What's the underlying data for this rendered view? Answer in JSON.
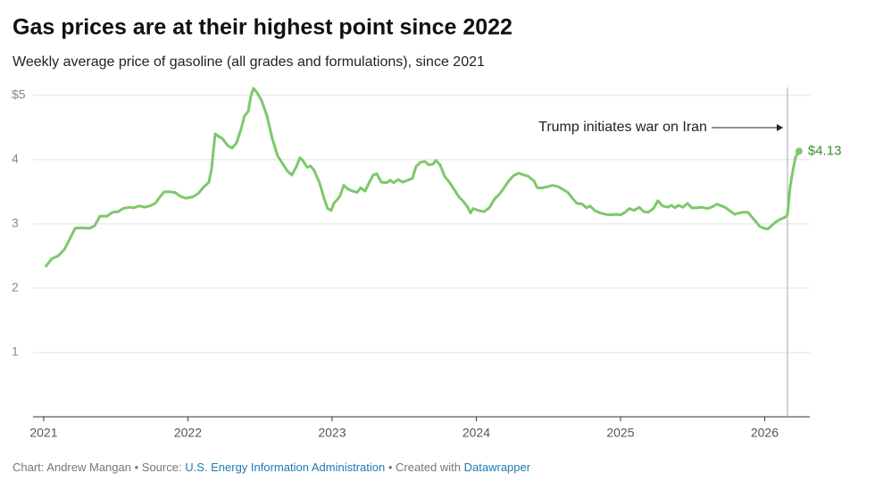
{
  "chart_data": {
    "type": "line",
    "title": "Gas prices are at their highest point since 2022",
    "subtitle": "Weekly average price of gasoline (all grades and formulations), since 2021",
    "xlim": [
      2020.926,
      2026.313
    ],
    "xticks": [
      2021,
      2022,
      2023,
      2024,
      2025,
      2026
    ],
    "ylim": [
      0,
      5.15
    ],
    "yticks": [
      1,
      2,
      3,
      4,
      {
        "value": 5,
        "label": "$5"
      }
    ],
    "grid": true,
    "annotation": {
      "text": "Trump initiates war on Iran",
      "x": 2026.158
    },
    "end_label": "$4.13",
    "series": [
      {
        "color": "#7dc86b",
        "x": [
          2021.012,
          2021.056,
          2021.099,
          2021.142,
          2021.18,
          2021.217,
          2021.254,
          2021.316,
          2021.353,
          2021.39,
          2021.44,
          2021.477,
          2021.514,
          2021.551,
          2021.594,
          2021.625,
          2021.663,
          2021.7,
          2021.737,
          2021.774,
          2021.799,
          2021.836,
          2021.873,
          2021.91,
          2021.947,
          2021.985,
          2022.034,
          2022.071,
          2022.108,
          2022.146,
          2022.164,
          2022.189,
          2022.214,
          2022.238,
          2022.276,
          2022.307,
          2022.337,
          2022.368,
          2022.393,
          2022.418,
          2022.437,
          2022.455,
          2022.48,
          2022.511,
          2022.548,
          2022.585,
          2022.622,
          2022.659,
          2022.69,
          2022.721,
          2022.752,
          2022.777,
          2022.796,
          2022.827,
          2022.851,
          2022.876,
          2022.913,
          2022.944,
          2022.969,
          2022.994,
          2023.012,
          2023.037,
          2023.056,
          2023.08,
          2023.111,
          2023.142,
          2023.173,
          2023.198,
          2023.229,
          2023.254,
          2023.285,
          2023.31,
          2023.341,
          2023.378,
          2023.402,
          2023.427,
          2023.458,
          2023.489,
          2023.526,
          2023.557,
          2023.582,
          2023.613,
          2023.644,
          2023.669,
          2023.7,
          2023.718,
          2023.749,
          2023.78,
          2023.817,
          2023.848,
          2023.879,
          2023.91,
          2023.941,
          2023.96,
          2023.978,
          2024.015,
          2024.053,
          2024.09,
          2024.127,
          2024.164,
          2024.195,
          2024.226,
          2024.257,
          2024.294,
          2024.331,
          2024.362,
          2024.399,
          2024.424,
          2024.461,
          2024.498,
          2024.529,
          2024.567,
          2024.598,
          2024.635,
          2024.666,
          2024.697,
          2024.734,
          2024.765,
          2024.789,
          2024.82,
          2024.858,
          2024.895,
          2024.932,
          2024.969,
          2025.0,
          2025.031,
          2025.062,
          2025.093,
          2025.13,
          2025.161,
          2025.192,
          2025.229,
          2025.26,
          2025.291,
          2025.328,
          2025.353,
          2025.378,
          2025.402,
          2025.433,
          2025.464,
          2025.495,
          2025.533,
          2025.563,
          2025.601,
          2025.632,
          2025.669,
          2025.7,
          2025.724,
          2025.755,
          2025.793,
          2025.824,
          2025.848,
          2025.885,
          2025.91,
          2025.941,
          2025.966,
          2025.997,
          2026.022,
          2026.046,
          2026.077,
          2026.108,
          2026.146,
          2026.158,
          2026.176,
          2026.195,
          2026.214,
          2026.238
        ],
        "values": [
          2.33,
          2.46,
          2.5,
          2.6,
          2.76,
          2.93,
          2.94,
          2.93,
          2.97,
          3.12,
          3.12,
          3.18,
          3.19,
          3.24,
          3.26,
          3.25,
          3.28,
          3.26,
          3.28,
          3.32,
          3.4,
          3.5,
          3.5,
          3.49,
          3.43,
          3.4,
          3.42,
          3.47,
          3.57,
          3.65,
          3.85,
          4.4,
          4.36,
          4.33,
          4.22,
          4.18,
          4.26,
          4.47,
          4.68,
          4.75,
          4.99,
          5.11,
          5.04,
          4.92,
          4.68,
          4.33,
          4.06,
          3.93,
          3.82,
          3.76,
          3.89,
          4.03,
          3.99,
          3.88,
          3.9,
          3.83,
          3.64,
          3.4,
          3.24,
          3.21,
          3.32,
          3.38,
          3.44,
          3.6,
          3.54,
          3.51,
          3.49,
          3.56,
          3.51,
          3.63,
          3.76,
          3.78,
          3.65,
          3.64,
          3.68,
          3.64,
          3.69,
          3.65,
          3.68,
          3.71,
          3.89,
          3.96,
          3.97,
          3.92,
          3.93,
          3.99,
          3.92,
          3.74,
          3.64,
          3.53,
          3.42,
          3.35,
          3.26,
          3.17,
          3.24,
          3.21,
          3.19,
          3.25,
          3.39,
          3.47,
          3.57,
          3.67,
          3.75,
          3.79,
          3.76,
          3.74,
          3.67,
          3.56,
          3.56,
          3.58,
          3.6,
          3.58,
          3.54,
          3.49,
          3.4,
          3.32,
          3.31,
          3.25,
          3.28,
          3.21,
          3.17,
          3.15,
          3.14,
          3.15,
          3.14,
          3.18,
          3.24,
          3.21,
          3.26,
          3.19,
          3.18,
          3.24,
          3.36,
          3.28,
          3.26,
          3.29,
          3.25,
          3.29,
          3.26,
          3.32,
          3.25,
          3.25,
          3.26,
          3.24,
          3.26,
          3.31,
          3.28,
          3.26,
          3.21,
          3.15,
          3.17,
          3.18,
          3.18,
          3.11,
          3.03,
          2.96,
          2.93,
          2.92,
          2.97,
          3.03,
          3.07,
          3.11,
          3.15,
          3.57,
          3.82,
          4.04,
          4.13
        ]
      }
    ]
  },
  "footer": {
    "byline": "Chart: Andrew Mangan",
    "separator": "•",
    "source_label": "Source:",
    "source": "U.S. Energy Information Administration",
    "credit_label": "Created with",
    "credit": "Datawrapper"
  }
}
